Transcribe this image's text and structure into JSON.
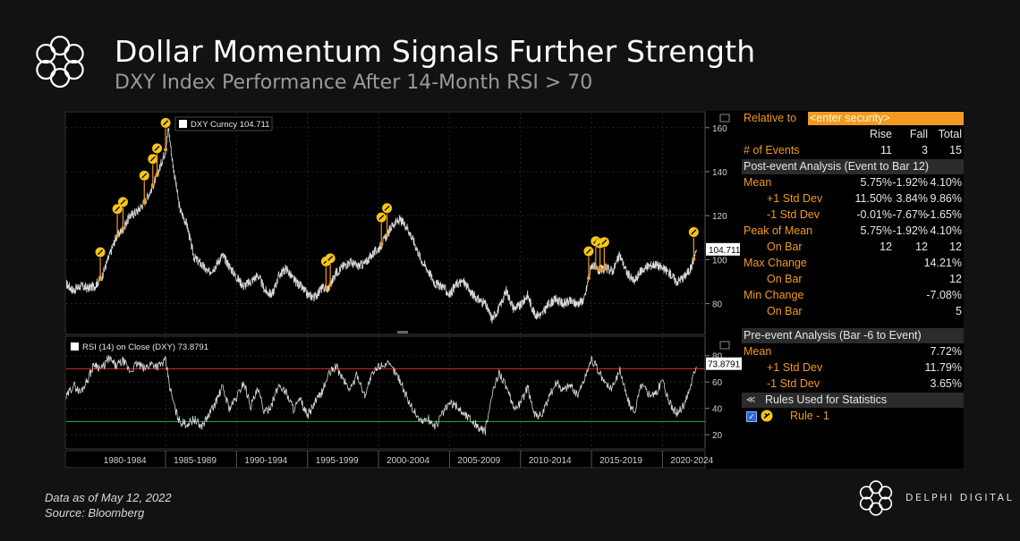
{
  "header": {
    "title": "Dollar Momentum Signals Further Strength",
    "subtitle": "DXY Index Performance After 14-Month RSI > 70"
  },
  "footer": {
    "data_as_of": "Data as of  May 12, 2022",
    "source": "Source: Bloomberg",
    "brand": "DELPHI DIGITAL"
  },
  "colors": {
    "background": "#121212",
    "panel_orange": "#f39a1e",
    "marker_yellow": "#f5c518",
    "rsi_overbought": "#c0272d",
    "rsi_oversold": "#21a038",
    "price_line": "#d9d9d9"
  },
  "chart_data": [
    {
      "type": "line",
      "legend": "DXY Curncy 104.711",
      "last_value_label": "104.711",
      "y_ticks": [
        "160",
        "140",
        "120",
        "100",
        "80"
      ],
      "ylim": [
        66,
        166
      ],
      "x_labels": [
        "1980-1984",
        "1985-1989",
        "1990-1994",
        "1995-1999",
        "2000-2004",
        "2005-2009",
        "2010-2014",
        "2015-2019",
        "2020-2024"
      ],
      "xlim": [
        1978,
        2023
      ],
      "series": [
        {
          "x": [
            1978.0,
            1978.5,
            1979.0,
            1979.5,
            1980.0,
            1980.5,
            1981.0,
            1981.5,
            1982.0,
            1982.5,
            1983.0,
            1983.5,
            1984.0,
            1984.5,
            1985.0,
            1985.2,
            1985.5,
            1986.0,
            1986.5,
            1987.0,
            1987.5,
            1988.0,
            1988.5,
            1989.0,
            1989.5,
            1990.0,
            1990.5,
            1991.0,
            1991.5,
            1992.0,
            1992.5,
            1993.0,
            1993.5,
            1994.0,
            1994.5,
            1995.0,
            1995.5,
            1996.0,
            1996.5,
            1997.0,
            1997.5,
            1998.0,
            1998.5,
            1999.0,
            1999.5,
            2000.0,
            2000.5,
            2001.0,
            2001.5,
            2002.0,
            2002.5,
            2003.0,
            2003.5,
            2004.0,
            2004.5,
            2005.0,
            2005.5,
            2006.0,
            2006.5,
            2007.0,
            2007.5,
            2008.0,
            2008.5,
            2009.0,
            2009.5,
            2010.0,
            2010.5,
            2011.0,
            2011.5,
            2012.0,
            2012.5,
            2013.0,
            2013.5,
            2014.0,
            2014.5,
            2015.0,
            2015.5,
            2016.0,
            2016.5,
            2017.0,
            2017.5,
            2018.0,
            2018.5,
            2019.0,
            2019.5,
            2020.0,
            2020.5,
            2021.0,
            2021.5,
            2022.0,
            2022.4
          ],
          "y": [
            89,
            86,
            88,
            87,
            88,
            92,
            101,
            110,
            114,
            120,
            122,
            126,
            132,
            140,
            150,
            160,
            144,
            123,
            116,
            101,
            98,
            94,
            97,
            102,
            97,
            92,
            88,
            90,
            93,
            86,
            84,
            93,
            96,
            91,
            88,
            84,
            83,
            87,
            87,
            94,
            97,
            99,
            97,
            98,
            102,
            105,
            110,
            116,
            118,
            115,
            108,
            100,
            95,
            89,
            88,
            84,
            89,
            90,
            85,
            82,
            80,
            73,
            78,
            86,
            78,
            79,
            84,
            75,
            75,
            80,
            82,
            80,
            81,
            80,
            82,
            98,
            95,
            96,
            95,
            102,
            94,
            90,
            95,
            97,
            98,
            96,
            94,
            90,
            92,
            96,
            104.7
          ]
        }
      ],
      "events": [
        1980.4,
        1981.6,
        1982.0,
        1983.5,
        1984.1,
        1984.4,
        1985.0,
        1996.3,
        1996.6,
        2000.2,
        2000.6,
        2014.8,
        2015.3,
        2015.6,
        2015.9,
        2022.2
      ]
    },
    {
      "type": "line",
      "legend": "RSI (14)  on Close (DXY) 73.8791",
      "last_value_label": "73.8791",
      "y_ticks": [
        "80",
        "60",
        "40",
        "20"
      ],
      "ylim": [
        12,
        92
      ],
      "reference_lines": [
        70,
        30
      ],
      "xlim": [
        1978,
        2023
      ],
      "series": [
        {
          "x": [
            1978.0,
            1978.5,
            1979.0,
            1979.5,
            1980.0,
            1980.5,
            1981.0,
            1981.5,
            1982.0,
            1982.5,
            1983.0,
            1983.5,
            1984.0,
            1984.5,
            1985.0,
            1985.3,
            1985.7,
            1986.0,
            1986.5,
            1987.0,
            1987.5,
            1988.0,
            1988.5,
            1989.0,
            1989.5,
            1990.0,
            1990.5,
            1991.0,
            1991.5,
            1992.0,
            1992.5,
            1993.0,
            1993.5,
            1994.0,
            1994.5,
            1995.0,
            1995.5,
            1996.0,
            1996.5,
            1997.0,
            1997.5,
            1998.0,
            1998.5,
            1999.0,
            1999.5,
            2000.0,
            2000.5,
            2001.0,
            2001.5,
            2002.0,
            2002.5,
            2003.0,
            2003.5,
            2004.0,
            2004.5,
            2005.0,
            2005.5,
            2006.0,
            2006.5,
            2007.0,
            2007.5,
            2008.0,
            2008.5,
            2009.0,
            2009.5,
            2010.0,
            2010.5,
            2011.0,
            2011.5,
            2012.0,
            2012.5,
            2013.0,
            2013.5,
            2014.0,
            2014.5,
            2015.0,
            2015.5,
            2016.0,
            2016.5,
            2017.0,
            2017.5,
            2018.0,
            2018.5,
            2019.0,
            2019.5,
            2020.0,
            2020.5,
            2021.0,
            2021.5,
            2022.0,
            2022.4
          ],
          "y": [
            48,
            58,
            52,
            62,
            74,
            70,
            78,
            72,
            76,
            68,
            74,
            70,
            74,
            72,
            76,
            56,
            38,
            30,
            28,
            32,
            26,
            34,
            44,
            56,
            40,
            48,
            60,
            42,
            54,
            36,
            44,
            58,
            52,
            40,
            46,
            34,
            44,
            52,
            66,
            72,
            62,
            54,
            66,
            50,
            64,
            72,
            74,
            70,
            62,
            48,
            38,
            30,
            32,
            26,
            36,
            44,
            42,
            36,
            32,
            26,
            22,
            50,
            68,
            56,
            40,
            44,
            56,
            36,
            34,
            48,
            60,
            54,
            58,
            50,
            62,
            78,
            68,
            58,
            56,
            70,
            48,
            36,
            58,
            52,
            50,
            62,
            44,
            36,
            42,
            58,
            73.9
          ]
        }
      ]
    }
  ],
  "stats_panel": {
    "relative_to_label": "Relative to",
    "relative_to_placeholder": "<enter security>",
    "columns": [
      "Rise",
      "Fall",
      "Total"
    ],
    "events_row": {
      "label": "# of Events",
      "values": [
        "11",
        "3",
        "15"
      ]
    },
    "post_section": "Post-event Analysis (Event to Bar 12)",
    "post_rows": [
      {
        "label": "Mean",
        "indent": false,
        "values": [
          "5.75%",
          "-1.92%",
          "4.10%"
        ]
      },
      {
        "label": "+1 Std Dev",
        "indent": true,
        "values": [
          "11.50%",
          "3.84%",
          "9.86%"
        ]
      },
      {
        "label": "-1 Std Dev",
        "indent": true,
        "values": [
          "-0.01%",
          "-7.67%",
          "-1.65%"
        ]
      },
      {
        "label": "Peak of Mean",
        "indent": false,
        "values": [
          "5.75%",
          "-1.92%",
          "4.10%"
        ]
      },
      {
        "label": "On Bar",
        "indent": true,
        "values": [
          "12",
          "12",
          "12"
        ]
      },
      {
        "label": "Max Change",
        "indent": false,
        "values": [
          "",
          "",
          "14.21%"
        ]
      },
      {
        "label": "On Bar",
        "indent": true,
        "values": [
          "",
          "",
          "12"
        ]
      },
      {
        "label": "Min Change",
        "indent": false,
        "values": [
          "",
          "",
          "-7.08%"
        ]
      },
      {
        "label": "On Bar",
        "indent": true,
        "values": [
          "",
          "",
          "5"
        ]
      }
    ],
    "pre_section": "Pre-event Analysis (Bar -6 to Event)",
    "pre_rows": [
      {
        "label": "Mean",
        "indent": false,
        "value": "7.72%"
      },
      {
        "label": "+1 Std Dev",
        "indent": true,
        "value": "11.79%"
      },
      {
        "label": "-1 Std Dev",
        "indent": true,
        "value": "3.65%"
      }
    ],
    "rules_header": "Rules Used for Statistics",
    "rule_label": "Rule - 1"
  }
}
